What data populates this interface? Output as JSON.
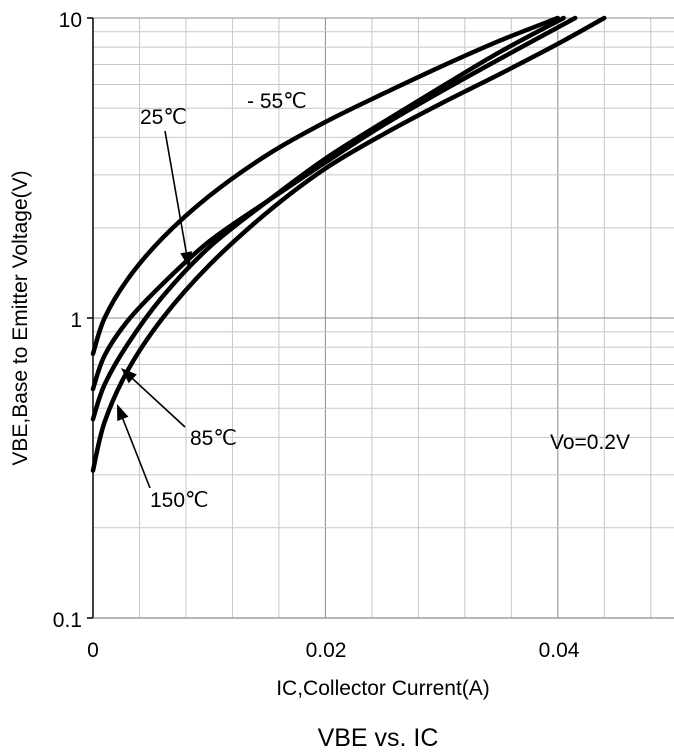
{
  "chart_data": {
    "type": "line",
    "title": "VBE vs. IC",
    "xlabel": "IC,Collector Current(A)",
    "ylabel": "VBE,Base to Emitter Voltage(V)",
    "xlim": [
      0,
      0.05
    ],
    "ylim": [
      0.1,
      10
    ],
    "yscale": "log",
    "grid": true,
    "x_ticks": [
      "0",
      "0.02",
      "0.04"
    ],
    "y_ticks": [
      "0.1",
      "1",
      "10"
    ],
    "series": [
      {
        "name": "- 55℃",
        "x": [
          0,
          0.001,
          0.003,
          0.006,
          0.01,
          0.015,
          0.02,
          0.025,
          0.03,
          0.035,
          0.04
        ],
        "y": [
          0.76,
          1.0,
          1.35,
          1.85,
          2.55,
          3.5,
          4.5,
          5.6,
          6.9,
          8.4,
          10.0
        ]
      },
      {
        "name": "25℃",
        "x": [
          0,
          0.001,
          0.003,
          0.006,
          0.01,
          0.015,
          0.02,
          0.025,
          0.03,
          0.035,
          0.0415
        ],
        "y": [
          0.58,
          0.75,
          0.98,
          1.3,
          1.8,
          2.45,
          3.3,
          4.4,
          5.7,
          7.3,
          10.0
        ]
      },
      {
        "name": "85℃",
        "x": [
          0,
          0.001,
          0.003,
          0.006,
          0.01,
          0.015,
          0.02,
          0.025,
          0.03,
          0.035,
          0.0405
        ],
        "y": [
          0.46,
          0.6,
          0.82,
          1.18,
          1.72,
          2.45,
          3.4,
          4.5,
          5.9,
          7.7,
          10.0
        ]
      },
      {
        "name": "150℃",
        "x": [
          0,
          0.001,
          0.003,
          0.006,
          0.01,
          0.015,
          0.02,
          0.025,
          0.03,
          0.035,
          0.04,
          0.044
        ],
        "y": [
          0.31,
          0.45,
          0.67,
          1.0,
          1.5,
          2.25,
          3.15,
          4.1,
          5.2,
          6.5,
          8.2,
          10.0
        ]
      }
    ],
    "annotations": [
      "- 55℃",
      "25℃",
      "85℃",
      "150℃",
      "Vo=0.2V"
    ]
  }
}
